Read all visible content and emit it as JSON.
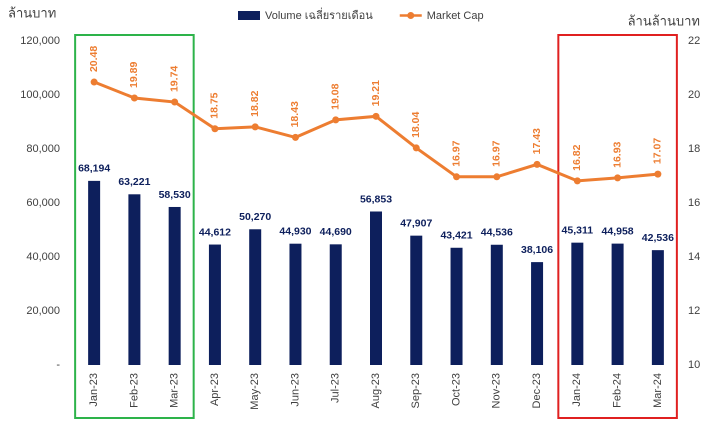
{
  "chart_data": {
    "type": "bar",
    "y_label": "ล้านบาท",
    "y2_label": "ล้านล้านบาท",
    "categories": [
      "Jan-23",
      "Feb-23",
      "Mar-23",
      "Apr-23",
      "May-23",
      "Jun-23",
      "Jul-23",
      "Aug-23",
      "Sep-23",
      "Oct-23",
      "Nov-23",
      "Dec-23",
      "Jan-24",
      "Feb-24",
      "Mar-24"
    ],
    "series": [
      {
        "name": "Volume เฉลี่ยรายเดือน",
        "type": "bar",
        "color": "#0d1f5c",
        "values": [
          68194,
          63221,
          58530,
          44612,
          50270,
          44930,
          44690,
          56853,
          47907,
          43421,
          44536,
          38106,
          45311,
          44958,
          42536
        ],
        "value_labels": [
          "68,194",
          "63,221",
          "58,530",
          "44,612",
          "50,270",
          "44,930",
          "44,690",
          "56,853",
          "47,907",
          "43,421",
          "44,536",
          "38,106",
          "45,311",
          "44,958",
          "42,536"
        ]
      },
      {
        "name": "Market Cap",
        "type": "line",
        "axis": "y2",
        "color": "#ed7d31",
        "values": [
          20.48,
          19.89,
          19.74,
          18.75,
          18.82,
          18.43,
          19.08,
          19.21,
          18.04,
          16.97,
          16.97,
          17.43,
          16.82,
          16.93,
          17.07
        ]
      }
    ],
    "ylim": [
      0,
      120000
    ],
    "yticks": [
      {
        "value": 0,
        "label": "-"
      },
      {
        "value": 20000,
        "label": "20,000"
      },
      {
        "value": 40000,
        "label": "40,000"
      },
      {
        "value": 60000,
        "label": "60,000"
      },
      {
        "value": 80000,
        "label": "80,000"
      },
      {
        "value": 100000,
        "label": "100,000"
      },
      {
        "value": 120000,
        "label": "120,000"
      }
    ],
    "y2lim": [
      10,
      22
    ],
    "y2ticks": [
      10,
      12,
      14,
      16,
      18,
      20,
      22
    ],
    "legend": "top"
  }
}
